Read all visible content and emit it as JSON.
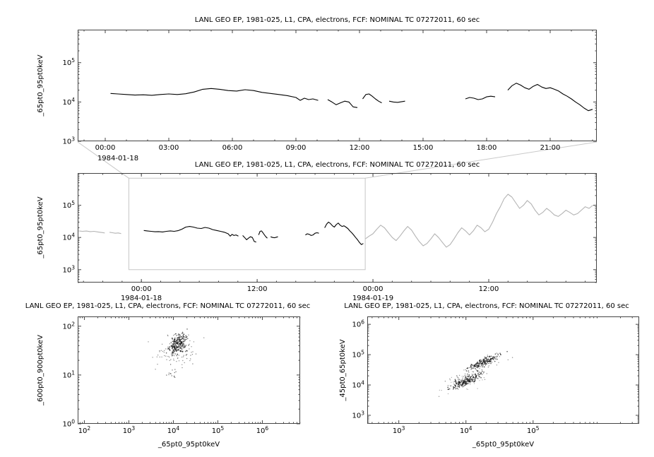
{
  "colors": {
    "series_main": "#000000",
    "series_context": "#b4b4b4",
    "zoom_box": "#c6c6c6",
    "connector": "#c9c9c9",
    "frame": "#444444",
    "background": "#ffffff"
  },
  "chart_data": [
    {
      "id": "timeseries-main",
      "type": "line",
      "title": "LANL GEO EP, 1981-025, L1, CPA, electrons, FCF: NOMINAL TC 07272011, 60 sec",
      "ylabel": "_65pt0_95pt0keV",
      "xlabel": "",
      "date_label": "1984-01-18",
      "x_axis": {
        "kind": "time",
        "unit": "hours since 1984-01-18 00:00",
        "lim": [
          -1.3,
          23.2
        ],
        "minor_step_h": 1,
        "major_ticks": [
          {
            "t": 0,
            "label": "00:00"
          },
          {
            "t": 3,
            "label": "03:00"
          },
          {
            "t": 6,
            "label": "06:00"
          },
          {
            "t": 9,
            "label": "09:00"
          },
          {
            "t": 12,
            "label": "12:00"
          },
          {
            "t": 15,
            "label": "15:00"
          },
          {
            "t": 18,
            "label": "18:00"
          },
          {
            "t": 21,
            "label": "21:00"
          }
        ]
      },
      "y_axis": {
        "kind": "log",
        "lim_log10": [
          3,
          5.84
        ],
        "major_ticks": [
          {
            "log": 3,
            "label": "10^3"
          },
          {
            "log": 4,
            "label": "10^4"
          },
          {
            "log": 5,
            "label": "10^5"
          }
        ]
      },
      "series": [
        {
          "name": "_65pt0_95pt0keV",
          "color": "#000000",
          "segments": [
            [
              [
                0.25,
                16500
              ],
              [
                0.6,
                16000
              ],
              [
                1.0,
                15500
              ],
              [
                1.4,
                15000
              ],
              [
                1.8,
                15200
              ],
              [
                2.2,
                14800
              ],
              [
                2.6,
                15500
              ],
              [
                3.0,
                16000
              ],
              [
                3.4,
                15500
              ],
              [
                3.8,
                16200
              ],
              [
                4.2,
                18000
              ],
              [
                4.6,
                21000
              ],
              [
                5.0,
                22000
              ],
              [
                5.4,
                21000
              ],
              [
                5.8,
                19500
              ],
              [
                6.2,
                19000
              ],
              [
                6.6,
                20500
              ],
              [
                7.0,
                19500
              ],
              [
                7.4,
                17500
              ],
              [
                7.8,
                16500
              ],
              [
                8.2,
                15500
              ],
              [
                8.6,
                14500
              ],
              [
                9.0,
                13000
              ],
              [
                9.2,
                11000
              ],
              [
                9.4,
                12500
              ],
              [
                9.6,
                11500
              ],
              [
                9.8,
                12000
              ],
              [
                10.05,
                11000
              ]
            ],
            [
              [
                10.5,
                11500
              ],
              [
                10.7,
                10000
              ],
              [
                10.9,
                8500
              ],
              [
                11.1,
                9500
              ],
              [
                11.3,
                10500
              ],
              [
                11.5,
                10000
              ],
              [
                11.7,
                7500
              ],
              [
                11.9,
                7200
              ]
            ],
            [
              [
                12.15,
                12000
              ],
              [
                12.3,
                15500
              ],
              [
                12.45,
                16000
              ],
              [
                12.6,
                14000
              ],
              [
                12.75,
                12000
              ],
              [
                12.9,
                10500
              ],
              [
                13.05,
                9500
              ]
            ],
            [
              [
                13.4,
                10500
              ],
              [
                13.6,
                10000
              ],
              [
                13.8,
                9800
              ],
              [
                14.0,
                10200
              ],
              [
                14.15,
                10500
              ]
            ],
            [
              [
                17.0,
                12000
              ],
              [
                17.2,
                13000
              ],
              [
                17.4,
                12500
              ],
              [
                17.6,
                11500
              ],
              [
                17.8,
                12000
              ],
              [
                18.0,
                13500
              ],
              [
                18.2,
                14000
              ],
              [
                18.4,
                13500
              ]
            ],
            [
              [
                19.0,
                20000
              ],
              [
                19.2,
                26000
              ],
              [
                19.4,
                30000
              ],
              [
                19.6,
                27000
              ],
              [
                19.8,
                23000
              ],
              [
                20.0,
                21000
              ],
              [
                20.2,
                25000
              ],
              [
                20.4,
                28000
              ],
              [
                20.6,
                24000
              ],
              [
                20.8,
                22000
              ],
              [
                21.0,
                23000
              ],
              [
                21.2,
                21000
              ],
              [
                21.4,
                19000
              ],
              [
                21.6,
                16000
              ],
              [
                21.8,
                14000
              ],
              [
                22.0,
                12000
              ],
              [
                22.2,
                10000
              ],
              [
                22.4,
                8500
              ],
              [
                22.6,
                7000
              ],
              [
                22.8,
                6000
              ],
              [
                23.0,
                6500
              ]
            ]
          ]
        }
      ]
    },
    {
      "id": "timeseries-context",
      "type": "line",
      "title": "LANL GEO EP, 1981-025, L1, CPA, electrons, FCF: NOMINAL TC 07272011, 60 sec",
      "ylabel": "_65pt0_95pt0keV",
      "xlabel": "",
      "date_labels": [
        "1984-01-18",
        "1984-01-19"
      ],
      "x_axis": {
        "kind": "time",
        "unit": "hours since 1984-01-18 00:00",
        "lim": [
          -6.6,
          47.2
        ],
        "minor_step_h": 2,
        "major_ticks": [
          {
            "t": 0,
            "label": "00:00"
          },
          {
            "t": 12,
            "label": "12:00"
          },
          {
            "t": 24,
            "label": "00:00"
          },
          {
            "t": 36,
            "label": "12:00"
          }
        ]
      },
      "y_axis": {
        "kind": "log",
        "lim_log10": [
          2.6,
          6.0
        ],
        "major_ticks": [
          {
            "log": 3,
            "label": "10^3"
          },
          {
            "log": 4,
            "label": "10^4"
          },
          {
            "log": 5,
            "label": "10^5"
          }
        ]
      },
      "zoom_box": {
        "x_range_hours": [
          -1.3,
          23.2
        ],
        "y_range_log10": [
          3,
          5.84
        ],
        "color": "#c6c6c6"
      },
      "series": [
        {
          "name": "context-surrounding-days",
          "color": "#b4b4b4",
          "segments": [
            [
              [
                -6.5,
                16000
              ],
              [
                -6.1,
                15500
              ],
              [
                -5.7,
                15800
              ],
              [
                -5.3,
                15200
              ],
              [
                -4.9,
                15500
              ],
              [
                -4.5,
                14800
              ],
              [
                -4.1,
                14200
              ],
              [
                -3.8,
                13800
              ]
            ],
            [
              [
                -3.3,
                14500
              ],
              [
                -3.0,
                14000
              ],
              [
                -2.7,
                13500
              ],
              [
                -2.4,
                13800
              ],
              [
                -2.1,
                13200
              ]
            ],
            [
              [
                23.2,
                9000
              ],
              [
                23.6,
                11000
              ],
              [
                24.0,
                13000
              ],
              [
                24.4,
                18000
              ],
              [
                24.8,
                24000
              ],
              [
                25.2,
                20000
              ],
              [
                25.6,
                14000
              ],
              [
                26.0,
                10000
              ],
              [
                26.4,
                8000
              ],
              [
                26.8,
                11000
              ],
              [
                27.2,
                16000
              ],
              [
                27.6,
                22000
              ],
              [
                28.0,
                17000
              ],
              [
                28.4,
                11000
              ],
              [
                28.8,
                7500
              ],
              [
                29.2,
                5500
              ],
              [
                29.6,
                6500
              ],
              [
                30.0,
                9000
              ],
              [
                30.4,
                13000
              ],
              [
                30.8,
                10000
              ],
              [
                31.2,
                7000
              ],
              [
                31.6,
                5000
              ],
              [
                32.0,
                6000
              ],
              [
                32.4,
                9000
              ],
              [
                32.8,
                14000
              ],
              [
                33.2,
                20000
              ],
              [
                33.6,
                16000
              ],
              [
                34.0,
                12000
              ],
              [
                34.4,
                16000
              ],
              [
                34.8,
                24000
              ],
              [
                35.2,
                20000
              ],
              [
                35.6,
                15000
              ],
              [
                36.0,
                18000
              ],
              [
                36.4,
                30000
              ],
              [
                36.8,
                55000
              ],
              [
                37.2,
                90000
              ],
              [
                37.6,
                160000
              ],
              [
                38.0,
                220000
              ],
              [
                38.4,
                180000
              ],
              [
                38.8,
                120000
              ],
              [
                39.2,
                80000
              ],
              [
                39.6,
                100000
              ],
              [
                40.0,
                140000
              ],
              [
                40.4,
                110000
              ],
              [
                40.8,
                70000
              ],
              [
                41.2,
                50000
              ],
              [
                41.6,
                60000
              ],
              [
                42.0,
                80000
              ],
              [
                42.4,
                65000
              ],
              [
                42.8,
                50000
              ],
              [
                43.2,
                45000
              ],
              [
                43.6,
                55000
              ],
              [
                44.0,
                70000
              ],
              [
                44.4,
                60000
              ],
              [
                44.8,
                50000
              ],
              [
                45.2,
                55000
              ],
              [
                45.6,
                70000
              ],
              [
                46.0,
                90000
              ],
              [
                46.4,
                80000
              ],
              [
                46.8,
                100000
              ]
            ]
          ]
        },
        {
          "name": "selected-day-1984-01-18",
          "color": "#000000",
          "segments_from": 0
        }
      ]
    },
    {
      "id": "scatter-600-900-vs-65-95",
      "type": "scatter",
      "title": "LANL GEO EP, 1981-025, L1, CPA, electrons, FCF: NOMINAL TC 07272011, 60 sec",
      "xlabel": "_65pt0_95pt0keV",
      "ylabel": "_600pt0_900pt0keV",
      "x_axis": {
        "kind": "log",
        "lim_log10": [
          1.85,
          6.85
        ],
        "major_ticks": [
          {
            "log": 2,
            "label": "10^2"
          },
          {
            "log": 3,
            "label": "10^3"
          },
          {
            "log": 4,
            "label": "10^4"
          },
          {
            "log": 5,
            "label": "10^5"
          },
          {
            "log": 6,
            "label": "10^6"
          }
        ]
      },
      "y_axis": {
        "kind": "log",
        "lim_log10": [
          0,
          2.2
        ],
        "major_ticks": [
          {
            "log": 0,
            "label": "10^0"
          },
          {
            "log": 1,
            "label": "10^1"
          },
          {
            "log": 2,
            "label": "10^2"
          }
        ]
      },
      "clusters": [
        {
          "cx": 4.1,
          "cy": 1.64,
          "sx": 0.09,
          "sy": 0.1,
          "rho": 0.25,
          "n": 230,
          "color": "#000000",
          "opacity": 0.6,
          "r": 0.8,
          "seed": 11
        },
        {
          "cx": 4.06,
          "cy": 1.52,
          "sx": 0.2,
          "sy": 0.17,
          "rho": 0.15,
          "n": 95,
          "color": "#222222",
          "opacity": 0.5,
          "r": 0.7,
          "seed": 22
        },
        {
          "cx": 3.97,
          "cy": 1.06,
          "sx": 0.09,
          "sy": 0.07,
          "rho": 0,
          "n": 14,
          "color": "#333333",
          "opacity": 0.7,
          "r": 0.7,
          "seed": 33
        },
        {
          "cx": 4.38,
          "cy": 1.42,
          "sx": 0.08,
          "sy": 0.09,
          "rho": 0,
          "n": 10,
          "color": "#333333",
          "opacity": 0.6,
          "r": 0.7,
          "seed": 44
        }
      ]
    },
    {
      "id": "scatter-45-65-vs-65-95",
      "type": "scatter",
      "title": "LANL GEO EP, 1981-025, L1, CPA, electrons, FCF: NOMINAL TC 07272011, 60 sec",
      "xlabel": "_65pt0_95pt0keV",
      "ylabel": "_45pt0_65pt0keV",
      "x_axis": {
        "kind": "log",
        "lim_log10": [
          2.53,
          6.58
        ],
        "major_ticks": [
          {
            "log": 3,
            "label": "10^3"
          },
          {
            "log": 4,
            "label": "10^4"
          },
          {
            "log": 5,
            "label": "10^5"
          }
        ]
      },
      "y_axis": {
        "kind": "log",
        "lim_log10": [
          2.72,
          6.26
        ],
        "major_ticks": [
          {
            "log": 3,
            "label": "10^3"
          },
          {
            "log": 4,
            "label": "10^4"
          },
          {
            "log": 5,
            "label": "10^5"
          },
          {
            "log": 6,
            "label": "10^6"
          }
        ]
      },
      "clusters": [
        {
          "cx": 4.0,
          "cy": 4.12,
          "sx": 0.11,
          "sy": 0.13,
          "rho": 0.85,
          "n": 170,
          "color": "#000000",
          "opacity": 0.65,
          "r": 0.8,
          "seed": 55
        },
        {
          "cx": 4.27,
          "cy": 4.76,
          "sx": 0.1,
          "sy": 0.11,
          "rho": 0.85,
          "n": 150,
          "color": "#000000",
          "opacity": 0.65,
          "r": 0.8,
          "seed": 66
        },
        {
          "cx": 4.12,
          "cy": 4.42,
          "sx": 0.2,
          "sy": 0.28,
          "rho": 0.85,
          "n": 110,
          "color": "#222222",
          "opacity": 0.5,
          "r": 0.7,
          "seed": 77
        },
        {
          "cx": 3.93,
          "cy": 4.05,
          "sx": 0.16,
          "sy": 0.18,
          "rho": 0.6,
          "n": 40,
          "color": "#444444",
          "opacity": 0.5,
          "r": 0.6,
          "seed": 88
        }
      ]
    }
  ]
}
